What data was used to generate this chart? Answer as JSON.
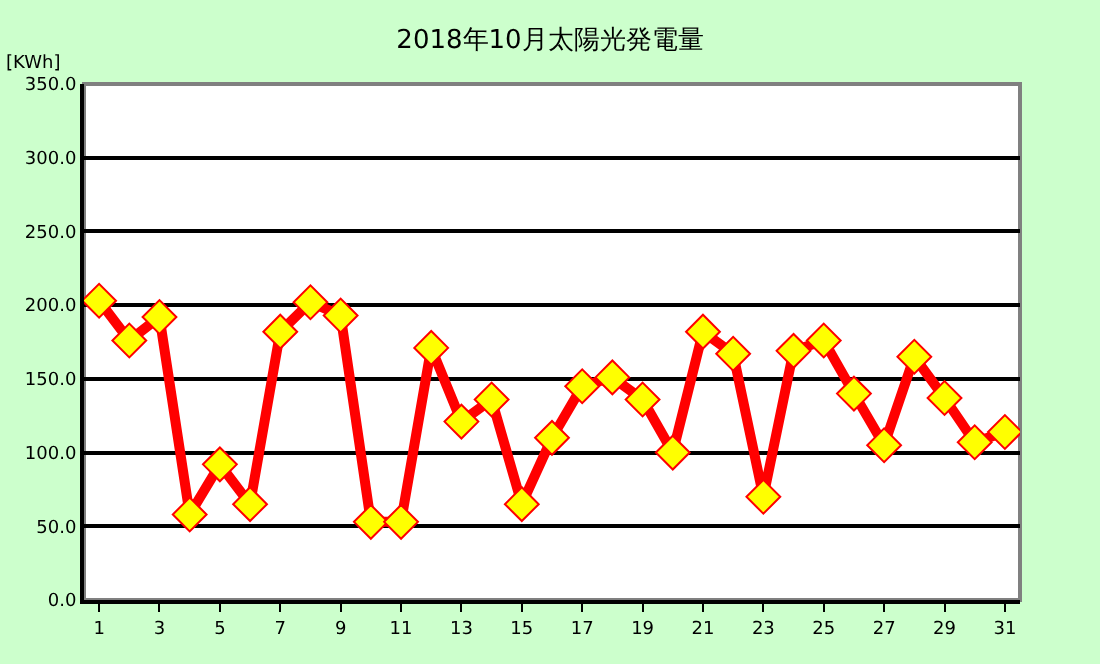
{
  "chart_data": {
    "type": "line",
    "title": "2018年10月太陽光発電量",
    "ylabel": "[KWh]",
    "x": [
      1,
      2,
      3,
      4,
      5,
      6,
      7,
      8,
      9,
      10,
      11,
      12,
      13,
      14,
      15,
      16,
      17,
      18,
      19,
      20,
      21,
      22,
      23,
      24,
      25,
      26,
      27,
      28,
      29,
      30,
      31
    ],
    "series": [
      {
        "color": "#ff0000",
        "values": [
          203,
          176,
          192,
          58,
          92,
          65,
          182,
          202,
          193,
          53,
          53,
          171,
          121,
          136,
          65,
          110,
          145,
          151,
          136,
          100,
          182,
          167,
          70,
          169,
          176,
          140,
          105,
          165,
          137,
          107,
          114
        ]
      }
    ],
    "xlim": [
      0.5,
      31.5
    ],
    "xticks": [
      1,
      3,
      5,
      7,
      9,
      11,
      13,
      15,
      17,
      19,
      21,
      23,
      25,
      27,
      29,
      31
    ],
    "ylim": [
      0,
      350
    ],
    "yticks": [
      {
        "value": 0,
        "label": "0.0"
      },
      {
        "value": 50,
        "label": "50.0"
      },
      {
        "value": 100,
        "label": "100.0"
      },
      {
        "value": 150,
        "label": "150.0"
      },
      {
        "value": 200,
        "label": "200.0"
      },
      {
        "value": 250,
        "label": "250.0"
      },
      {
        "value": 300,
        "label": "300.0"
      },
      {
        "value": 350,
        "label": "350.0"
      }
    ],
    "grid": "y",
    "legend": false,
    "marker": "diamond",
    "line_style": "solid"
  }
}
